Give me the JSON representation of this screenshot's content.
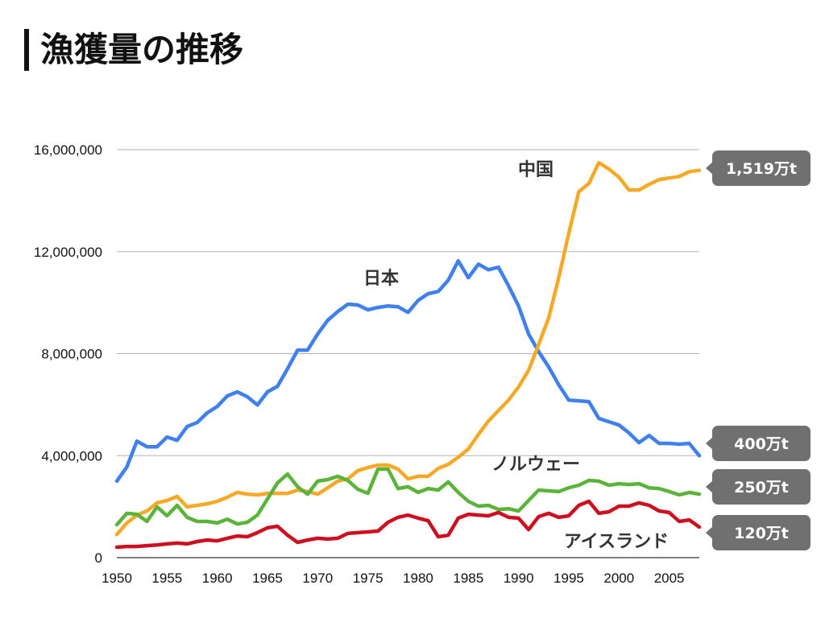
{
  "chart_data": {
    "type": "line",
    "title": "漁獲量の推移",
    "grid": true,
    "xlim": [
      1950,
      2008
    ],
    "ylim": [
      0,
      16000000
    ],
    "x": [
      1950,
      1951,
      1952,
      1953,
      1954,
      1955,
      1956,
      1957,
      1958,
      1959,
      1960,
      1961,
      1962,
      1963,
      1964,
      1965,
      1966,
      1967,
      1968,
      1969,
      1970,
      1971,
      1972,
      1973,
      1974,
      1975,
      1976,
      1977,
      1978,
      1979,
      1980,
      1981,
      1982,
      1983,
      1984,
      1985,
      1986,
      1987,
      1988,
      1989,
      1990,
      1991,
      1992,
      1993,
      1994,
      1995,
      1996,
      1997,
      1998,
      1999,
      2000,
      2001,
      2002,
      2003,
      2004,
      2005,
      2006,
      2007,
      2008
    ],
    "x_ticks": [
      {
        "value": 1950,
        "label": "1950"
      },
      {
        "value": 1955,
        "label": "1955"
      },
      {
        "value": 1960,
        "label": "1960"
      },
      {
        "value": 1965,
        "label": "1965"
      },
      {
        "value": 1970,
        "label": "1970"
      },
      {
        "value": 1975,
        "label": "1975"
      },
      {
        "value": 1980,
        "label": "1980"
      },
      {
        "value": 1985,
        "label": "1985"
      },
      {
        "value": 1990,
        "label": "1990"
      },
      {
        "value": 1995,
        "label": "1995"
      },
      {
        "value": 2000,
        "label": "2000"
      },
      {
        "value": 2005,
        "label": "2005"
      }
    ],
    "y_ticks": [
      {
        "value": 0,
        "label": "0"
      },
      {
        "value": 4000000,
        "label": "4,000,000"
      },
      {
        "value": 8000000,
        "label": "8,000,000"
      },
      {
        "value": 12000000,
        "label": "12,000,000"
      },
      {
        "value": 16000000,
        "label": "16,000,000"
      }
    ],
    "callout_color": "#707070",
    "series": [
      {
        "name": "日本",
        "color": "#3f80ee",
        "end_label": "400万t",
        "values": [
          3000000,
          3560000,
          4570000,
          4350000,
          4350000,
          4730000,
          4600000,
          5140000,
          5300000,
          5680000,
          5930000,
          6340000,
          6500000,
          6310000,
          5990000,
          6500000,
          6720000,
          7410000,
          8140000,
          8140000,
          8770000,
          9310000,
          9650000,
          9940000,
          9910000,
          9720000,
          9810000,
          9870000,
          9840000,
          9620000,
          10090000,
          10350000,
          10440000,
          10880000,
          11640000,
          10980000,
          11510000,
          11290000,
          11390000,
          10660000,
          9870000,
          8770000,
          8080000,
          7480000,
          6780000,
          6180000,
          6150000,
          6120000,
          5460000,
          5330000,
          5200000,
          4890000,
          4510000,
          4790000,
          4480000,
          4480000,
          4450000,
          4480000,
          4000000
        ]
      },
      {
        "name": "中国",
        "color": "#f6a927",
        "end_label": "1,519万t",
        "values": [
          910000,
          1360000,
          1670000,
          1830000,
          2150000,
          2240000,
          2400000,
          1990000,
          2050000,
          2110000,
          2210000,
          2370000,
          2560000,
          2490000,
          2460000,
          2520000,
          2520000,
          2520000,
          2650000,
          2590000,
          2490000,
          2740000,
          3000000,
          3090000,
          3410000,
          3530000,
          3630000,
          3630000,
          3470000,
          3090000,
          3190000,
          3190000,
          3500000,
          3660000,
          3940000,
          4260000,
          4830000,
          5360000,
          5770000,
          6180000,
          6690000,
          7350000,
          8360000,
          9400000,
          10980000,
          12710000,
          14350000,
          14670000,
          15490000,
          15240000,
          14920000,
          14420000,
          14420000,
          14640000,
          14830000,
          14890000,
          14950000,
          15140000,
          15190000
        ]
      },
      {
        "name": "ノルウェー",
        "color": "#5ab43a",
        "end_label": "250万t",
        "values": [
          1290000,
          1740000,
          1700000,
          1420000,
          1990000,
          1640000,
          2050000,
          1580000,
          1420000,
          1420000,
          1360000,
          1510000,
          1320000,
          1390000,
          1670000,
          2300000,
          2930000,
          3280000,
          2780000,
          2490000,
          3000000,
          3060000,
          3190000,
          3030000,
          2680000,
          2520000,
          3470000,
          3470000,
          2710000,
          2780000,
          2560000,
          2710000,
          2650000,
          2970000,
          2560000,
          2210000,
          2020000,
          2050000,
          1890000,
          1920000,
          1830000,
          2240000,
          2650000,
          2620000,
          2590000,
          2740000,
          2840000,
          3030000,
          3000000,
          2840000,
          2900000,
          2870000,
          2900000,
          2740000,
          2710000,
          2590000,
          2460000,
          2560000,
          2490000
        ]
      },
      {
        "name": "アイスランド",
        "color": "#cc1020",
        "end_label": "120万t",
        "values": [
          410000,
          440000,
          440000,
          470000,
          500000,
          540000,
          570000,
          540000,
          630000,
          690000,
          660000,
          760000,
          850000,
          820000,
          980000,
          1170000,
          1230000,
          880000,
          600000,
          690000,
          760000,
          730000,
          760000,
          950000,
          980000,
          1010000,
          1040000,
          1390000,
          1580000,
          1670000,
          1550000,
          1450000,
          820000,
          880000,
          1550000,
          1700000,
          1670000,
          1640000,
          1770000,
          1580000,
          1550000,
          1100000,
          1610000,
          1740000,
          1580000,
          1640000,
          2050000,
          2210000,
          1740000,
          1800000,
          2020000,
          2020000,
          2150000,
          2050000,
          1830000,
          1770000,
          1420000,
          1480000,
          1200000
        ]
      }
    ]
  }
}
